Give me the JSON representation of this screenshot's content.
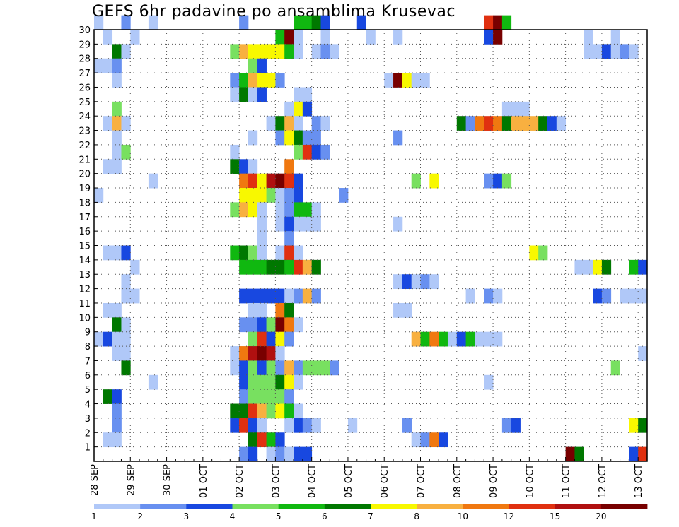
{
  "chart_data": {
    "type": "heatmap",
    "title": "GEFS 6hr padavine po ansamblima Krusevac",
    "xlabel": "",
    "ylabel": "",
    "x_tick_labels": [
      "28 SEP",
      "29 SEP",
      "30 SEP",
      "01 OCT",
      "02 OCT",
      "03 OCT",
      "04 OCT",
      "05 OCT",
      "06 OCT",
      "07 OCT",
      "08 OCT",
      "09 OCT",
      "10 OCT",
      "11 OCT",
      "12 OCT",
      "13 OCT"
    ],
    "y_tick_labels": [
      "1",
      "2",
      "3",
      "4",
      "5",
      "6",
      "7",
      "8",
      "9",
      "10",
      "11",
      "12",
      "13",
      "14",
      "15",
      "16",
      "17",
      "18",
      "19",
      "20",
      "21",
      "22",
      "23",
      "24",
      "25",
      "26",
      "27",
      "28",
      "29",
      "30"
    ],
    "x_steps_per_day": 4,
    "x_range_steps": [
      0,
      61
    ],
    "y_range_members": [
      0,
      30
    ],
    "grid": "dotted",
    "colorbar": {
      "labels": [
        "1",
        "2",
        "3",
        "4",
        "5",
        "6",
        "7",
        "8",
        "10",
        "12",
        "15",
        "20"
      ],
      "colors": [
        "#b0c8f8",
        "#6890f0",
        "#1848e0",
        "#78e060",
        "#10b810",
        "#007800",
        "#f8f800",
        "#f8b040",
        "#f07810",
        "#e03010",
        "#b01010",
        "#780000"
      ]
    },
    "cells": [
      [
        30,
        0,
        0
      ],
      [
        30,
        3,
        1
      ],
      [
        30,
        6,
        0
      ],
      [
        30,
        16,
        1
      ],
      [
        30,
        22,
        4
      ],
      [
        30,
        23,
        4
      ],
      [
        30,
        24,
        5
      ],
      [
        30,
        25,
        2
      ],
      [
        30,
        29,
        2
      ],
      [
        30,
        43,
        9
      ],
      [
        30,
        44,
        11
      ],
      [
        30,
        45,
        4
      ],
      [
        29,
        1,
        0
      ],
      [
        29,
        4,
        0
      ],
      [
        29,
        20,
        4
      ],
      [
        29,
        21,
        11
      ],
      [
        29,
        22,
        0
      ],
      [
        29,
        25,
        0
      ],
      [
        29,
        30,
        0
      ],
      [
        29,
        33,
        0
      ],
      [
        29,
        43,
        2
      ],
      [
        29,
        44,
        11
      ],
      [
        29,
        54,
        0
      ],
      [
        29,
        57,
        0
      ],
      [
        28,
        2,
        5
      ],
      [
        28,
        3,
        0
      ],
      [
        28,
        15,
        3
      ],
      [
        28,
        16,
        7
      ],
      [
        28,
        17,
        6
      ],
      [
        28,
        18,
        6
      ],
      [
        28,
        19,
        6
      ],
      [
        28,
        20,
        6
      ],
      [
        28,
        21,
        4
      ],
      [
        28,
        22,
        0
      ],
      [
        28,
        24,
        0
      ],
      [
        28,
        25,
        1
      ],
      [
        28,
        26,
        0
      ],
      [
        28,
        54,
        0
      ],
      [
        28,
        55,
        0
      ],
      [
        28,
        56,
        2
      ],
      [
        28,
        57,
        0
      ],
      [
        28,
        58,
        1
      ],
      [
        28,
        59,
        0
      ],
      [
        27,
        0,
        0
      ],
      [
        27,
        1,
        0
      ],
      [
        27,
        2,
        1
      ],
      [
        27,
        17,
        3
      ],
      [
        27,
        18,
        2
      ],
      [
        26,
        2,
        0
      ],
      [
        26,
        15,
        1
      ],
      [
        26,
        16,
        4
      ],
      [
        26,
        17,
        7
      ],
      [
        26,
        18,
        6
      ],
      [
        26,
        19,
        6
      ],
      [
        26,
        20,
        1
      ],
      [
        26,
        32,
        0
      ],
      [
        26,
        33,
        11
      ],
      [
        26,
        34,
        6
      ],
      [
        26,
        35,
        0
      ],
      [
        26,
        36,
        0
      ],
      [
        25,
        15,
        0
      ],
      [
        25,
        16,
        5
      ],
      [
        25,
        17,
        0
      ],
      [
        25,
        18,
        2
      ],
      [
        25,
        22,
        0
      ],
      [
        25,
        23,
        0
      ],
      [
        24,
        2,
        3
      ],
      [
        24,
        21,
        0
      ],
      [
        24,
        22,
        6
      ],
      [
        24,
        23,
        2
      ],
      [
        24,
        45,
        0
      ],
      [
        24,
        46,
        0
      ],
      [
        24,
        47,
        0
      ],
      [
        23,
        1,
        0
      ],
      [
        23,
        2,
        7
      ],
      [
        23,
        3,
        0
      ],
      [
        23,
        19,
        0
      ],
      [
        23,
        20,
        5
      ],
      [
        23,
        21,
        7
      ],
      [
        23,
        22,
        0
      ],
      [
        23,
        24,
        1
      ],
      [
        23,
        25,
        0
      ],
      [
        23,
        40,
        5
      ],
      [
        23,
        41,
        1
      ],
      [
        23,
        42,
        8
      ],
      [
        23,
        43,
        9
      ],
      [
        23,
        44,
        8
      ],
      [
        23,
        45,
        5
      ],
      [
        23,
        46,
        7
      ],
      [
        23,
        47,
        7
      ],
      [
        23,
        48,
        7
      ],
      [
        23,
        49,
        5
      ],
      [
        23,
        50,
        2
      ],
      [
        23,
        51,
        0
      ],
      [
        22,
        2,
        0
      ],
      [
        22,
        17,
        0
      ],
      [
        22,
        20,
        1
      ],
      [
        22,
        21,
        6
      ],
      [
        22,
        22,
        5
      ],
      [
        22,
        23,
        1
      ],
      [
        22,
        24,
        1
      ],
      [
        22,
        33,
        1
      ],
      [
        21,
        2,
        0
      ],
      [
        21,
        3,
        3
      ],
      [
        21,
        15,
        0
      ],
      [
        21,
        22,
        3
      ],
      [
        21,
        23,
        9
      ],
      [
        21,
        24,
        2
      ],
      [
        21,
        25,
        1
      ],
      [
        20,
        1,
        0
      ],
      [
        20,
        2,
        0
      ],
      [
        20,
        15,
        5
      ],
      [
        20,
        16,
        2
      ],
      [
        20,
        17,
        0
      ],
      [
        20,
        21,
        8
      ],
      [
        19,
        6,
        0
      ],
      [
        19,
        16,
        8
      ],
      [
        19,
        17,
        9
      ],
      [
        19,
        18,
        6
      ],
      [
        19,
        19,
        10
      ],
      [
        19,
        20,
        11
      ],
      [
        19,
        21,
        9
      ],
      [
        19,
        22,
        2
      ],
      [
        19,
        35,
        3
      ],
      [
        19,
        37,
        6
      ],
      [
        19,
        43,
        1
      ],
      [
        19,
        44,
        2
      ],
      [
        19,
        45,
        3
      ],
      [
        18,
        0,
        0
      ],
      [
        18,
        16,
        6
      ],
      [
        18,
        17,
        6
      ],
      [
        18,
        18,
        6
      ],
      [
        18,
        19,
        3
      ],
      [
        18,
        20,
        0
      ],
      [
        18,
        21,
        1
      ],
      [
        18,
        22,
        2
      ],
      [
        18,
        27,
        1
      ],
      [
        17,
        15,
        3
      ],
      [
        17,
        16,
        7
      ],
      [
        17,
        17,
        6
      ],
      [
        17,
        18,
        0
      ],
      [
        17,
        20,
        0
      ],
      [
        17,
        21,
        1
      ],
      [
        17,
        22,
        4
      ],
      [
        17,
        23,
        4
      ],
      [
        17,
        24,
        0
      ],
      [
        16,
        18,
        0
      ],
      [
        16,
        20,
        0
      ],
      [
        16,
        21,
        2
      ],
      [
        16,
        22,
        0
      ],
      [
        16,
        23,
        0
      ],
      [
        16,
        24,
        0
      ],
      [
        16,
        33,
        0
      ],
      [
        15,
        18,
        0
      ],
      [
        15,
        21,
        1
      ],
      [
        14,
        1,
        0
      ],
      [
        14,
        2,
        0
      ],
      [
        14,
        3,
        2
      ],
      [
        14,
        15,
        4
      ],
      [
        14,
        16,
        5
      ],
      [
        14,
        17,
        3
      ],
      [
        14,
        18,
        0
      ],
      [
        14,
        20,
        0
      ],
      [
        14,
        21,
        9
      ],
      [
        14,
        22,
        0
      ],
      [
        14,
        48,
        6
      ],
      [
        14,
        49,
        3
      ],
      [
        13,
        4,
        0
      ],
      [
        13,
        16,
        4
      ],
      [
        13,
        17,
        4
      ],
      [
        13,
        18,
        4
      ],
      [
        13,
        19,
        5
      ],
      [
        13,
        20,
        5
      ],
      [
        13,
        21,
        4
      ],
      [
        13,
        22,
        9
      ],
      [
        13,
        23,
        7
      ],
      [
        13,
        24,
        5
      ],
      [
        13,
        53,
        0
      ],
      [
        13,
        54,
        0
      ],
      [
        13,
        55,
        6
      ],
      [
        13,
        56,
        5
      ],
      [
        13,
        59,
        4
      ],
      [
        13,
        60,
        2
      ],
      [
        12,
        3,
        0
      ],
      [
        12,
        33,
        0
      ],
      [
        12,
        34,
        2
      ],
      [
        12,
        35,
        0
      ],
      [
        12,
        36,
        1
      ],
      [
        12,
        37,
        0
      ],
      [
        11,
        3,
        0
      ],
      [
        11,
        4,
        0
      ],
      [
        11,
        16,
        2
      ],
      [
        11,
        17,
        2
      ],
      [
        11,
        18,
        2
      ],
      [
        11,
        19,
        2
      ],
      [
        11,
        20,
        2
      ],
      [
        11,
        21,
        0
      ],
      [
        11,
        22,
        1
      ],
      [
        11,
        23,
        7
      ],
      [
        11,
        24,
        1
      ],
      [
        11,
        41,
        0
      ],
      [
        11,
        43,
        1
      ],
      [
        11,
        44,
        0
      ],
      [
        11,
        55,
        2
      ],
      [
        11,
        56,
        1
      ],
      [
        11,
        58,
        0
      ],
      [
        11,
        59,
        0
      ],
      [
        11,
        60,
        0
      ],
      [
        10,
        1,
        0
      ],
      [
        10,
        2,
        0
      ],
      [
        10,
        17,
        0
      ],
      [
        10,
        18,
        0
      ],
      [
        10,
        20,
        8
      ],
      [
        10,
        21,
        5
      ],
      [
        10,
        33,
        0
      ],
      [
        10,
        34,
        0
      ],
      [
        9,
        2,
        5
      ],
      [
        9,
        3,
        0
      ],
      [
        9,
        16,
        1
      ],
      [
        9,
        17,
        1
      ],
      [
        9,
        18,
        2
      ],
      [
        9,
        19,
        3
      ],
      [
        9,
        20,
        11
      ],
      [
        9,
        21,
        8
      ],
      [
        9,
        22,
        0
      ],
      [
        8,
        0,
        0
      ],
      [
        8,
        1,
        2
      ],
      [
        8,
        2,
        0
      ],
      [
        8,
        3,
        0
      ],
      [
        8,
        17,
        3
      ],
      [
        8,
        18,
        9
      ],
      [
        8,
        19,
        2
      ],
      [
        8,
        20,
        6
      ],
      [
        8,
        21,
        1
      ],
      [
        8,
        35,
        7
      ],
      [
        8,
        36,
        4
      ],
      [
        8,
        37,
        8
      ],
      [
        8,
        38,
        4
      ],
      [
        8,
        39,
        0
      ],
      [
        8,
        40,
        2
      ],
      [
        8,
        41,
        4
      ],
      [
        8,
        42,
        0
      ],
      [
        8,
        43,
        0
      ],
      [
        8,
        44,
        0
      ],
      [
        7,
        2,
        0
      ],
      [
        7,
        3,
        0
      ],
      [
        7,
        15,
        0
      ],
      [
        7,
        16,
        8
      ],
      [
        7,
        17,
        10
      ],
      [
        7,
        18,
        11
      ],
      [
        7,
        19,
        10
      ],
      [
        7,
        20,
        0
      ],
      [
        7,
        60,
        0
      ],
      [
        6,
        3,
        5
      ],
      [
        6,
        15,
        0
      ],
      [
        6,
        16,
        2
      ],
      [
        6,
        17,
        3
      ],
      [
        6,
        18,
        2
      ],
      [
        6,
        19,
        3
      ],
      [
        6,
        20,
        1
      ],
      [
        6,
        21,
        7
      ],
      [
        6,
        22,
        1
      ],
      [
        6,
        23,
        3
      ],
      [
        6,
        24,
        3
      ],
      [
        6,
        25,
        3
      ],
      [
        6,
        26,
        1
      ],
      [
        6,
        57,
        3
      ],
      [
        5,
        6,
        0
      ],
      [
        5,
        16,
        2
      ],
      [
        5,
        17,
        3
      ],
      [
        5,
        18,
        3
      ],
      [
        5,
        19,
        3
      ],
      [
        5,
        20,
        5
      ],
      [
        5,
        21,
        6
      ],
      [
        5,
        22,
        0
      ],
      [
        5,
        43,
        0
      ],
      [
        4,
        1,
        5
      ],
      [
        4,
        2,
        2
      ],
      [
        4,
        16,
        1
      ],
      [
        4,
        17,
        3
      ],
      [
        4,
        18,
        3
      ],
      [
        4,
        19,
        3
      ],
      [
        4,
        20,
        3
      ],
      [
        4,
        21,
        1
      ],
      [
        3,
        2,
        1
      ],
      [
        3,
        15,
        5
      ],
      [
        3,
        16,
        5
      ],
      [
        3,
        17,
        9
      ],
      [
        3,
        18,
        7
      ],
      [
        3,
        19,
        3
      ],
      [
        3,
        20,
        6
      ],
      [
        3,
        21,
        4
      ],
      [
        3,
        22,
        0
      ],
      [
        2,
        2,
        1
      ],
      [
        2,
        15,
        2
      ],
      [
        2,
        16,
        9
      ],
      [
        2,
        17,
        2
      ],
      [
        2,
        18,
        0
      ],
      [
        2,
        21,
        0
      ],
      [
        2,
        22,
        2
      ],
      [
        2,
        23,
        1
      ],
      [
        2,
        24,
        0
      ],
      [
        2,
        28,
        0
      ],
      [
        2,
        34,
        1
      ],
      [
        2,
        45,
        1
      ],
      [
        2,
        46,
        2
      ],
      [
        2,
        59,
        6
      ],
      [
        2,
        60,
        5
      ],
      [
        1,
        1,
        0
      ],
      [
        1,
        2,
        0
      ],
      [
        1,
        17,
        5
      ],
      [
        1,
        18,
        9
      ],
      [
        1,
        19,
        4
      ],
      [
        1,
        20,
        2
      ],
      [
        1,
        35,
        0
      ],
      [
        1,
        36,
        1
      ],
      [
        1,
        37,
        8
      ],
      [
        1,
        38,
        2
      ],
      [
        0,
        16,
        1
      ],
      [
        0,
        17,
        2
      ],
      [
        0,
        19,
        0
      ],
      [
        0,
        20,
        1
      ],
      [
        0,
        21,
        0
      ],
      [
        0,
        22,
        2
      ],
      [
        0,
        23,
        2
      ],
      [
        0,
        52,
        11
      ],
      [
        0,
        53,
        5
      ],
      [
        0,
        59,
        2
      ],
      [
        0,
        60,
        9
      ]
    ]
  }
}
